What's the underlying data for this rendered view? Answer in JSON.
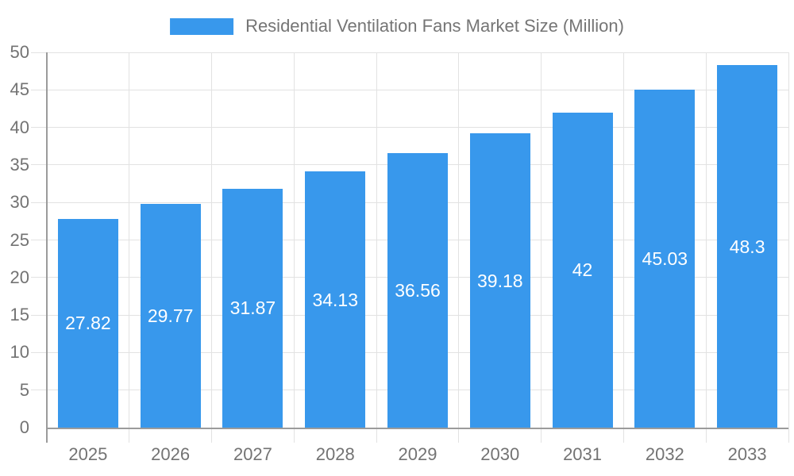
{
  "chart_data": {
    "type": "bar",
    "title": "Residential Ventilation Fans Market Size (Million)",
    "series_name": "Residential Ventilation Fans Market Size (Million)",
    "categories": [
      "2025",
      "2026",
      "2027",
      "2028",
      "2029",
      "2030",
      "2031",
      "2032",
      "2033"
    ],
    "values": [
      27.82,
      29.77,
      31.87,
      34.13,
      36.56,
      39.18,
      42,
      45.03,
      48.3
    ],
    "bar_value_labels": [
      "27.82",
      "29.77",
      "31.87",
      "34.13",
      "36.56",
      "39.18",
      "42",
      "45.03",
      "48.3"
    ],
    "xlabel": "",
    "ylabel": "",
    "ylim": [
      0,
      50
    ],
    "ytick_step": 5,
    "yticks": [
      0,
      5,
      10,
      15,
      20,
      25,
      30,
      35,
      40,
      45,
      50
    ],
    "grid": true,
    "legend_position": "top",
    "colors": {
      "bar": "#3898EC",
      "value_label": "#FFFFFF",
      "axis_line": "#9B9B9B",
      "gridline": "#E2E2E2",
      "tick_mark": "#D9D9D9",
      "tick_text": "#737373",
      "legend_text": "#757575",
      "background": "#FFFFFF"
    }
  }
}
